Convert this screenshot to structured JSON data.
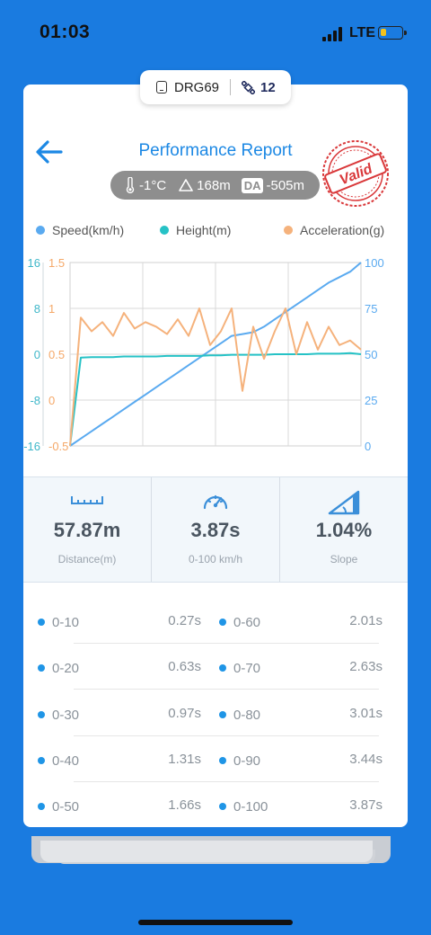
{
  "status_bar": {
    "time": "01:03",
    "carrier": "LTE",
    "battery_level": 0.3
  },
  "device_pill": {
    "device_name": "DRG69",
    "satellites": "12",
    "icons": [
      "device-icon",
      "satellite-icon"
    ]
  },
  "header": {
    "title": "Performance Report",
    "stamp_text": "Valid",
    "back_icon": "arrow-left-icon"
  },
  "conditions": {
    "temperature": "-1°C",
    "altitude": "168m",
    "da_badge": "DA",
    "density_altitude": "-505m"
  },
  "legend": [
    {
      "label": "Speed(km/h)",
      "color": "#5aaaf0"
    },
    {
      "label": "Height(m)",
      "color": "#26c2c6"
    },
    {
      "label": "Acceleration(g)",
      "color": "#f5b27c"
    }
  ],
  "chart_data": {
    "type": "line",
    "x_ticks": 4,
    "axes": {
      "left_outer": {
        "ticks": [
          "16",
          "8",
          "0",
          "-8",
          "-16"
        ],
        "range": [
          -16,
          16
        ],
        "color": "#3fb7c9",
        "series": "Height(m)"
      },
      "left_inner": {
        "ticks": [
          "1.5",
          "1",
          "0.5",
          "0",
          "-0.5"
        ],
        "range": [
          -0.5,
          1.5
        ],
        "color": "#f5a868",
        "series": "Acceleration(g)"
      },
      "right": {
        "ticks": [
          "100",
          "75",
          "50",
          "25",
          "0"
        ],
        "range": [
          0,
          100
        ],
        "color": "#5aaaf0",
        "series": "Speed(km/h)"
      }
    },
    "series": [
      {
        "name": "Speed(km/h)",
        "color": "#5aaaf0",
        "axis": "right",
        "values": [
          0,
          4,
          8,
          12,
          16,
          20,
          24,
          28,
          32,
          36,
          40,
          44,
          48,
          52,
          56,
          60,
          61,
          62,
          65,
          69,
          73,
          77,
          81,
          85,
          89,
          92,
          95,
          100
        ]
      },
      {
        "name": "Height(m)",
        "color": "#26c2c6",
        "axis": "left_outer",
        "values": [
          -16,
          -0.6,
          -0.5,
          -0.5,
          -0.5,
          -0.4,
          -0.4,
          -0.4,
          -0.4,
          -0.3,
          -0.3,
          -0.3,
          -0.3,
          -0.2,
          -0.2,
          -0.1,
          -0.1,
          -0.1,
          -0.1,
          0,
          0,
          0,
          0,
          0.1,
          0.1,
          0.1,
          0.2,
          0
        ]
      },
      {
        "name": "Acceleration(g)",
        "color": "#f5b27c",
        "axis": "left_inner",
        "values": [
          -0.5,
          0.9,
          0.75,
          0.85,
          0.7,
          0.95,
          0.78,
          0.85,
          0.8,
          0.72,
          0.88,
          0.7,
          1.0,
          0.6,
          0.75,
          1.0,
          0.1,
          0.8,
          0.45,
          0.75,
          1.0,
          0.5,
          0.85,
          0.55,
          0.8,
          0.6,
          0.65,
          0.55
        ]
      }
    ]
  },
  "stats": [
    {
      "value": "57.87m",
      "label": "Distance(m)",
      "icon": "ruler-icon"
    },
    {
      "value": "3.87s",
      "label": "0-100 km/h",
      "icon": "speedometer-icon"
    },
    {
      "value": "1.04%",
      "label": "Slope",
      "icon": "slope-icon"
    }
  ],
  "splits": [
    {
      "left_range": "0-10",
      "left_time": "0.27s",
      "right_range": "0-60",
      "right_time": "2.01s"
    },
    {
      "left_range": "0-20",
      "left_time": "0.63s",
      "right_range": "0-70",
      "right_time": "2.63s"
    },
    {
      "left_range": "0-30",
      "left_time": "0.97s",
      "right_range": "0-80",
      "right_time": "3.01s"
    },
    {
      "left_range": "0-40",
      "left_time": "1.31s",
      "right_range": "0-90",
      "right_time": "3.44s"
    },
    {
      "left_range": "0-50",
      "left_time": "1.66s",
      "right_range": "0-100",
      "right_time": "3.87s"
    }
  ]
}
